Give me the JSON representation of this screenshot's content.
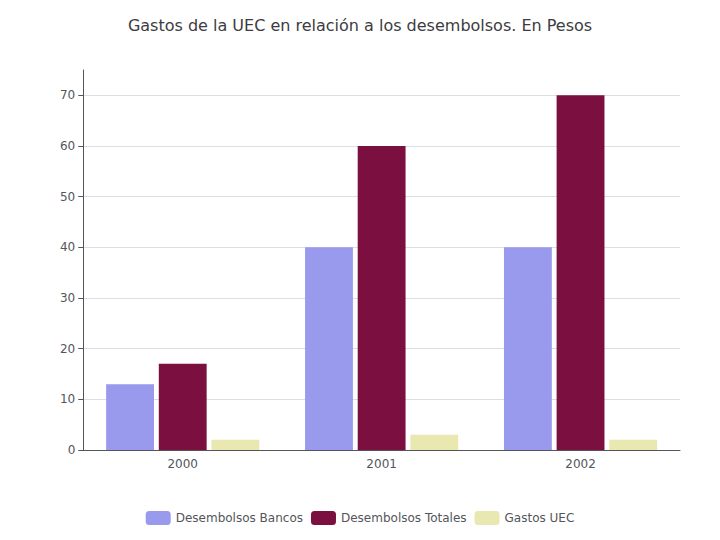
{
  "chart_data": {
    "type": "bar",
    "title": "Gastos de la UEC en relación a los desembolsos. En Pesos",
    "categories": [
      "2000",
      "2001",
      "2002"
    ],
    "series": [
      {
        "name": "Desembolsos Bancos",
        "color": "#9999EE",
        "values": [
          13,
          40,
          40
        ]
      },
      {
        "name": "Desembolsos Totales",
        "color": "#7B1040",
        "values": [
          17,
          60,
          70
        ]
      },
      {
        "name": "Gastos UEC",
        "color": "#E8E8B0",
        "values": [
          2,
          3,
          2
        ]
      }
    ],
    "ylim": [
      0,
      75
    ],
    "yticks": [
      0,
      10,
      20,
      30,
      40,
      50,
      60,
      70
    ],
    "grid": true,
    "legend": "bottom"
  }
}
